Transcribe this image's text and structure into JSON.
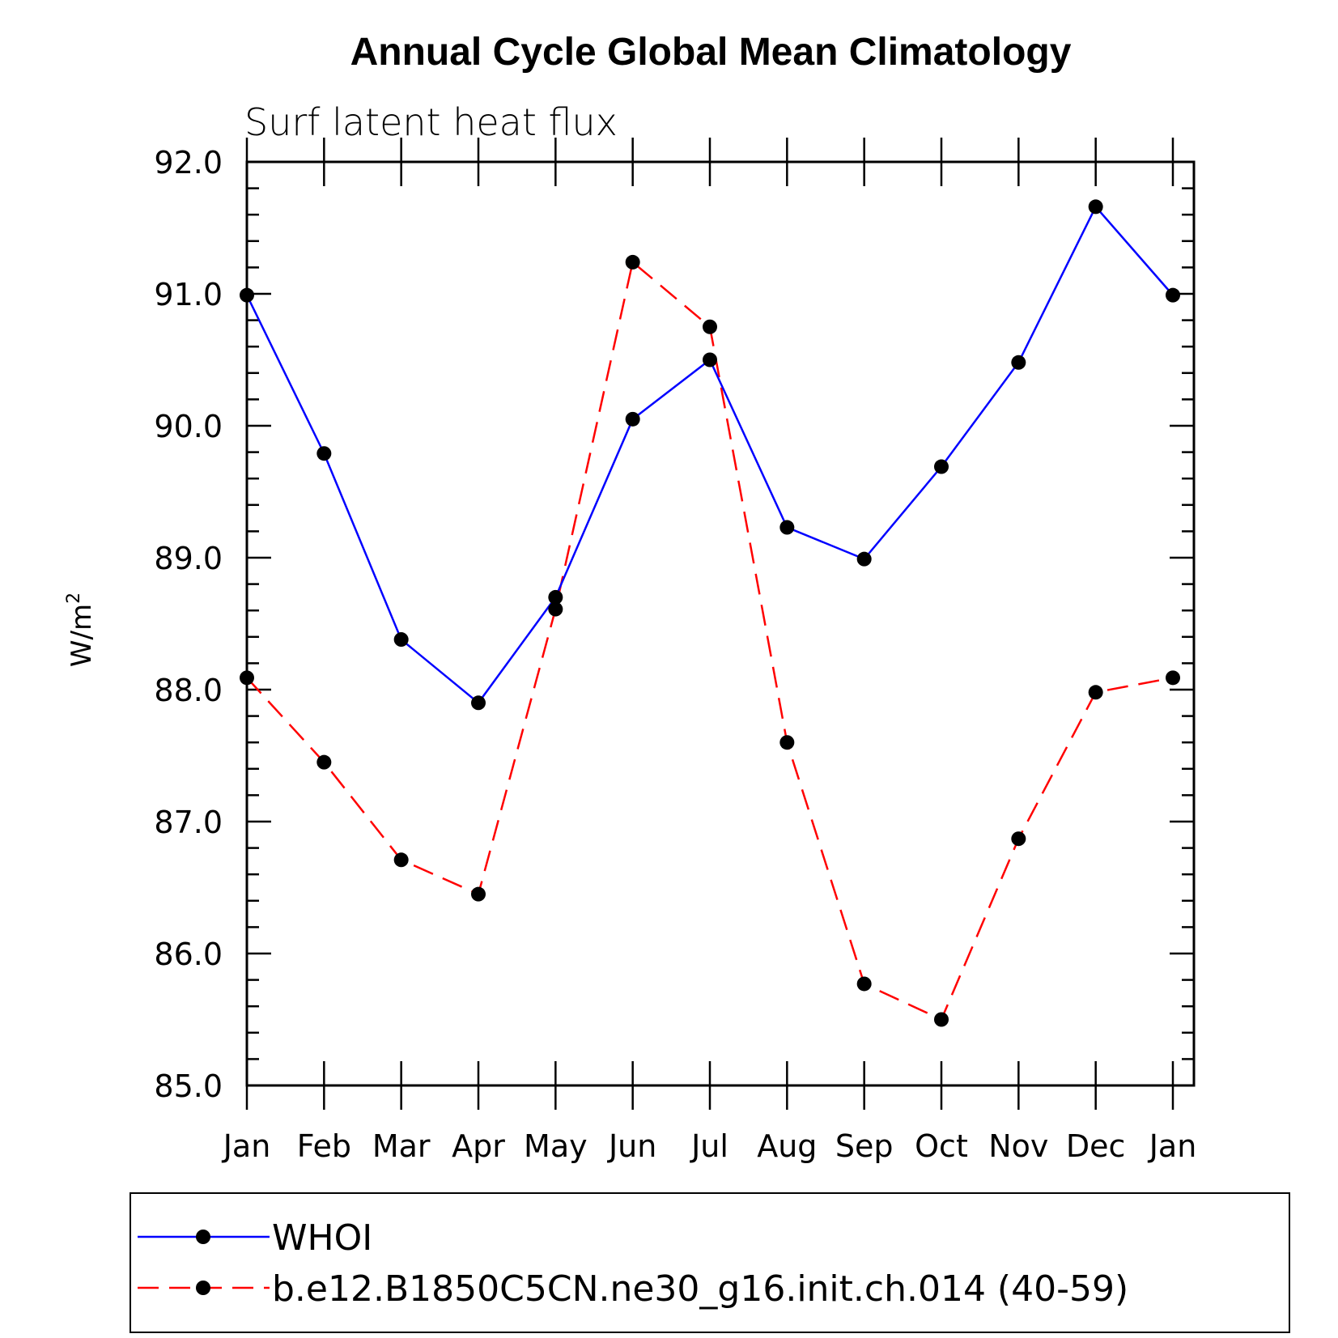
{
  "chart_data": {
    "type": "line",
    "title": "Annual Cycle Global Mean Climatology",
    "subtitle": "Surf latent heat flux",
    "ylabel": "W/m",
    "ylabel_superscript": "2",
    "xlabel": "",
    "categories": [
      "Jan",
      "Feb",
      "Mar",
      "Apr",
      "May",
      "Jun",
      "Jul",
      "Aug",
      "Sep",
      "Oct",
      "Nov",
      "Dec",
      "Jan"
    ],
    "ylim": [
      85.0,
      92.0
    ],
    "yticks": [
      "85.0",
      "86.0",
      "87.0",
      "88.0",
      "89.0",
      "90.0",
      "91.0",
      "92.0"
    ],
    "grid": false,
    "legend_position": "bottom",
    "series": [
      {
        "name": "WHOI",
        "color": "#0000ff",
        "line_style": "solid",
        "marker": "circle",
        "values": [
          90.99,
          89.79,
          88.38,
          87.9,
          88.7,
          90.05,
          90.5,
          89.23,
          88.99,
          89.69,
          90.48,
          91.66,
          90.99
        ]
      },
      {
        "name": "b.e12.B1850C5CN.ne30_g16.init.ch.014 (40-59)",
        "color": "#ff0000",
        "line_style": "dashed",
        "marker": "circle",
        "values": [
          88.09,
          87.45,
          86.71,
          86.45,
          88.61,
          91.24,
          90.75,
          87.6,
          85.77,
          85.5,
          86.87,
          87.98,
          88.09
        ]
      }
    ]
  }
}
